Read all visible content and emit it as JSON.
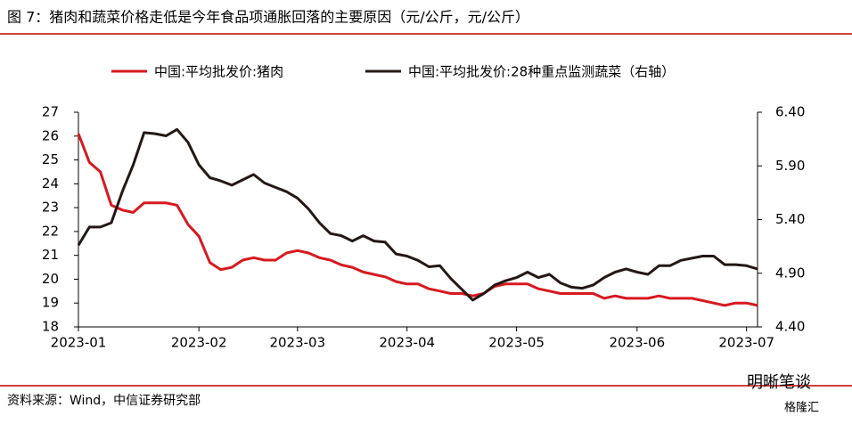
{
  "chart_data": {
    "type": "line",
    "title": "图 7：猪肉和蔬菜价格走低是今年食品项通胀回落的主要原因（元/公斤，元/公斤）",
    "source": "资料来源：Wind，中信证券研究部",
    "watermark": "明晰笔谈",
    "watermark_logo": "格隆汇",
    "categories": [
      "2023-01",
      null,
      null,
      null,
      null,
      null,
      null,
      null,
      null,
      null,
      null,
      "2023-02",
      null,
      null,
      null,
      null,
      null,
      null,
      null,
      null,
      "2023-03",
      null,
      null,
      null,
      null,
      null,
      null,
      null,
      null,
      null,
      "2023-04",
      null,
      null,
      null,
      null,
      null,
      null,
      null,
      null,
      null,
      "2023-05",
      null,
      null,
      null,
      null,
      null,
      null,
      null,
      null,
      null,
      null,
      "2023-06",
      null,
      null,
      null,
      null,
      null,
      null,
      null,
      null,
      null,
      "2023-07",
      null
    ],
    "series": [
      {
        "name": "中国:平均批发价:猪肉",
        "color": "#d7191f",
        "axis": "y",
        "values": [
          26.1,
          24.9,
          24.5,
          23.1,
          22.9,
          22.8,
          23.2,
          23.2,
          23.2,
          23.1,
          22.3,
          21.8,
          20.7,
          20.4,
          20.5,
          20.8,
          20.9,
          20.8,
          20.8,
          21.1,
          21.2,
          21.1,
          20.9,
          20.8,
          20.6,
          20.5,
          20.3,
          20.2,
          20.1,
          19.9,
          19.8,
          19.8,
          19.6,
          19.5,
          19.4,
          19.4,
          19.3,
          19.4,
          19.7,
          19.8,
          19.8,
          19.8,
          19.6,
          19.5,
          19.4,
          19.4,
          19.4,
          19.4,
          19.2,
          19.3,
          19.2,
          19.2,
          19.2,
          19.3,
          19.2,
          19.2,
          19.2,
          19.1,
          19.0,
          18.9,
          19.0,
          19.0,
          18.9
        ]
      },
      {
        "name": "中国:平均批发价:28种重点监测蔬菜（右轴）",
        "color": "#231815",
        "axis": "y2",
        "values": [
          5.16,
          5.33,
          5.33,
          5.37,
          5.66,
          5.91,
          6.21,
          6.2,
          6.18,
          6.24,
          6.12,
          5.91,
          5.79,
          5.76,
          5.72,
          5.77,
          5.82,
          5.74,
          5.7,
          5.66,
          5.6,
          5.5,
          5.37,
          5.27,
          5.25,
          5.2,
          5.25,
          5.2,
          5.19,
          5.08,
          5.06,
          5.02,
          4.96,
          4.97,
          4.85,
          4.75,
          4.65,
          4.71,
          4.79,
          4.83,
          4.86,
          4.91,
          4.86,
          4.89,
          4.81,
          4.77,
          4.76,
          4.79,
          4.86,
          4.91,
          4.94,
          4.91,
          4.89,
          4.97,
          4.97,
          5.02,
          5.04,
          5.06,
          5.06,
          4.98,
          4.98,
          4.97,
          4.94
        ]
      }
    ],
    "ylim": [
      18,
      27
    ],
    "yticks": [
      18,
      19,
      20,
      21,
      22,
      23,
      24,
      25,
      26,
      27
    ],
    "y2lim": [
      4.4,
      6.4
    ],
    "y2ticks": [
      {
        "value": 4.4,
        "label": "4.40"
      },
      {
        "value": 4.9,
        "label": "4.90"
      },
      {
        "value": 5.4,
        "label": "5.40"
      },
      {
        "value": 5.9,
        "label": "5.90"
      },
      {
        "value": 6.4,
        "label": "6.40"
      }
    ],
    "grid": false,
    "legend": "top"
  }
}
